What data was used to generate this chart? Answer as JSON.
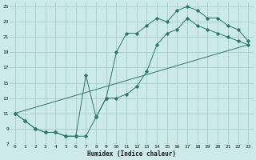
{
  "xlabel": "Humidex (Indice chaleur)",
  "background_color": "#cceaea",
  "grid_color": "#aacccc",
  "line_color": "#2a7a6a",
  "xlim": [
    -0.5,
    23.5
  ],
  "ylim": [
    7,
    25.5
  ],
  "xticks": [
    0,
    1,
    2,
    3,
    4,
    5,
    6,
    7,
    8,
    9,
    10,
    11,
    12,
    13,
    14,
    15,
    16,
    17,
    18,
    19,
    20,
    21,
    22,
    23
  ],
  "yticks": [
    7,
    9,
    11,
    13,
    15,
    17,
    19,
    21,
    23,
    25
  ],
  "line1_x": [
    0,
    1,
    2,
    3,
    4,
    5,
    6,
    7,
    8,
    9,
    10,
    11,
    12,
    13,
    14,
    15,
    16,
    17,
    18,
    19,
    20,
    21,
    22,
    23
  ],
  "line1_y": [
    11,
    10,
    9,
    8.5,
    8.5,
    8,
    8,
    8,
    10.5,
    13,
    13,
    13.5,
    14.5,
    16.5,
    20,
    21.5,
    22,
    23.5,
    22.5,
    22,
    21.5,
    21,
    20.5,
    20
  ],
  "line2_x": [
    0,
    1,
    2,
    3,
    4,
    5,
    6,
    7,
    8,
    9,
    10,
    11,
    12,
    13,
    14,
    15,
    16,
    17,
    18,
    19,
    20,
    21,
    22,
    23
  ],
  "line2_y": [
    11,
    10,
    9,
    8.5,
    8.5,
    8,
    8,
    16,
    10.5,
    13,
    19,
    21.5,
    21.5,
    22.5,
    23.5,
    23,
    24.5,
    25,
    24.5,
    23.5,
    23.5,
    22.5,
    22,
    20.5
  ],
  "line3_x": [
    0,
    23
  ],
  "line3_y": [
    11,
    20
  ]
}
